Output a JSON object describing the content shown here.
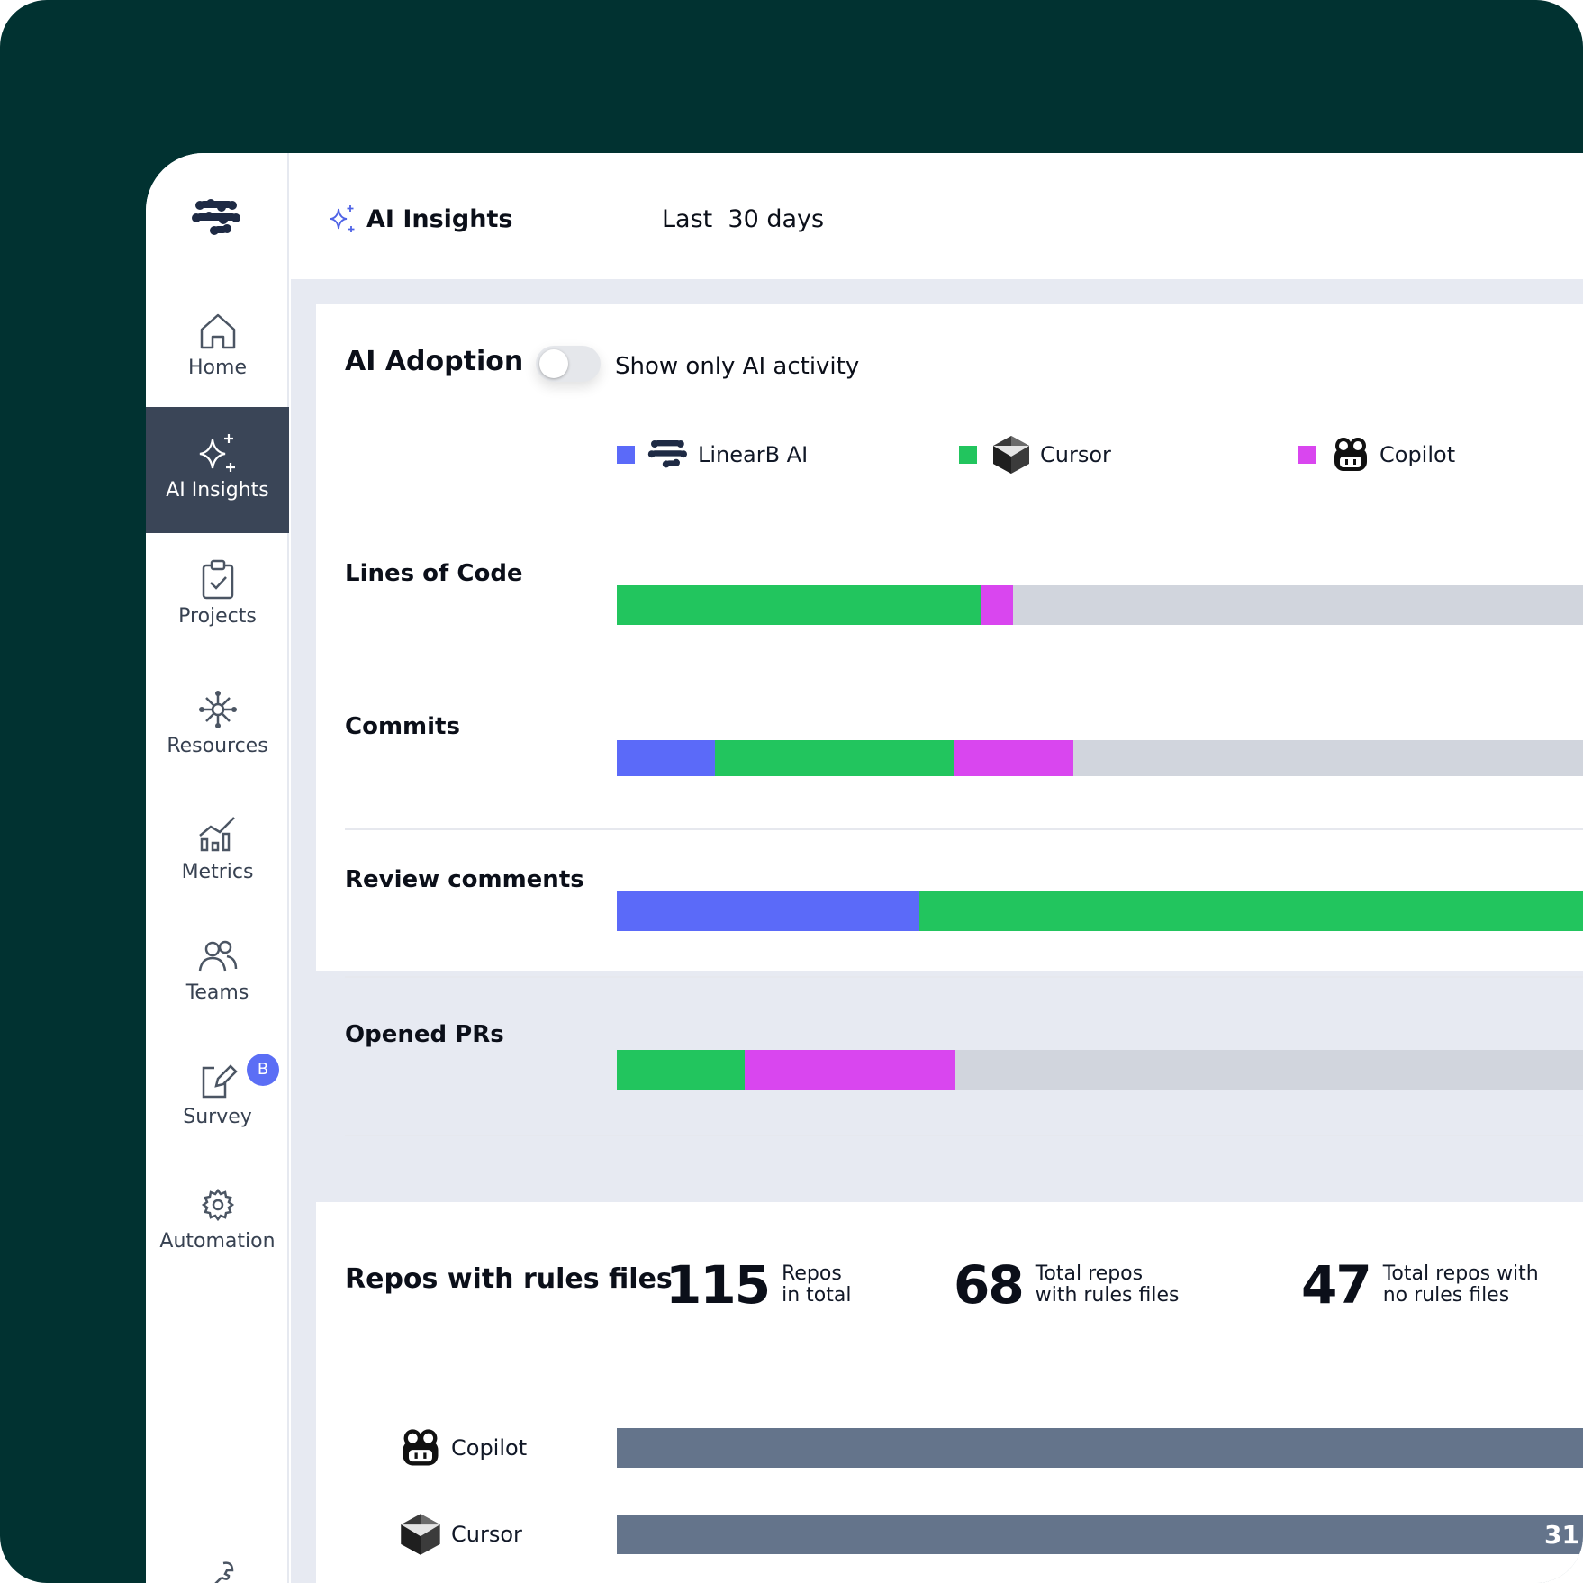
{
  "colors": {
    "linearb": "#5b6af9",
    "cursor": "#22c55e",
    "copilot": "#d946ef",
    "rest": "#d1d5dd",
    "repo_bar": "#64748b"
  },
  "sidebar": {
    "items": [
      {
        "label": "Home",
        "icon": "home-icon"
      },
      {
        "label": "AI Insights",
        "icon": "sparkles-icon"
      },
      {
        "label": "Projects",
        "icon": "clipboard-check-icon"
      },
      {
        "label": "Resources",
        "icon": "network-icon"
      },
      {
        "label": "Metrics",
        "icon": "bar-chart-icon"
      },
      {
        "label": "Teams",
        "icon": "users-icon"
      },
      {
        "label": "Survey",
        "icon": "edit-clipboard-icon",
        "badge": "B"
      },
      {
        "label": "Automation",
        "icon": "gear-cycle-icon"
      }
    ]
  },
  "header": {
    "title": "AI Insights",
    "range": "Last  30 days"
  },
  "adoption": {
    "title": "AI Adoption",
    "toggle_label": "Show only AI activity",
    "legend": [
      {
        "label": "LinearB AI",
        "icon": "linearb-logo-icon"
      },
      {
        "label": "Cursor",
        "icon": "cursor-logo-icon"
      },
      {
        "label": "Copilot",
        "icon": "copilot-logo-icon"
      }
    ],
    "rows": [
      {
        "label": "Lines of Code",
        "segments": {
          "linearb": 0,
          "cursor": 0.368,
          "copilot": 0.033
        }
      },
      {
        "label": "Commits",
        "segments": {
          "linearb": 0.099,
          "cursor": 0.242,
          "copilot": 0.121
        }
      },
      {
        "label": "Review comments",
        "segments": {
          "linearb": 0.306,
          "cursor": 0.694,
          "copilot": 0
        }
      },
      {
        "label": "Opened PRs",
        "segments": {
          "linearb": 0,
          "cursor": 0.129,
          "copilot": 0.214
        }
      }
    ]
  },
  "repos": {
    "title": "Repos with rules files",
    "stats": [
      {
        "value": "115",
        "line1": "Repos",
        "line2": "in total"
      },
      {
        "value": "68",
        "line1": "Total repos",
        "line2": "with rules files"
      },
      {
        "value": "47",
        "line1": "Total repos with",
        "line2": "no rules files"
      }
    ],
    "bars": [
      {
        "label": "Copilot",
        "icon": "copilot-logo-icon",
        "value": ""
      },
      {
        "label": "Cursor",
        "icon": "cursor-logo-icon",
        "value": "31"
      }
    ]
  }
}
